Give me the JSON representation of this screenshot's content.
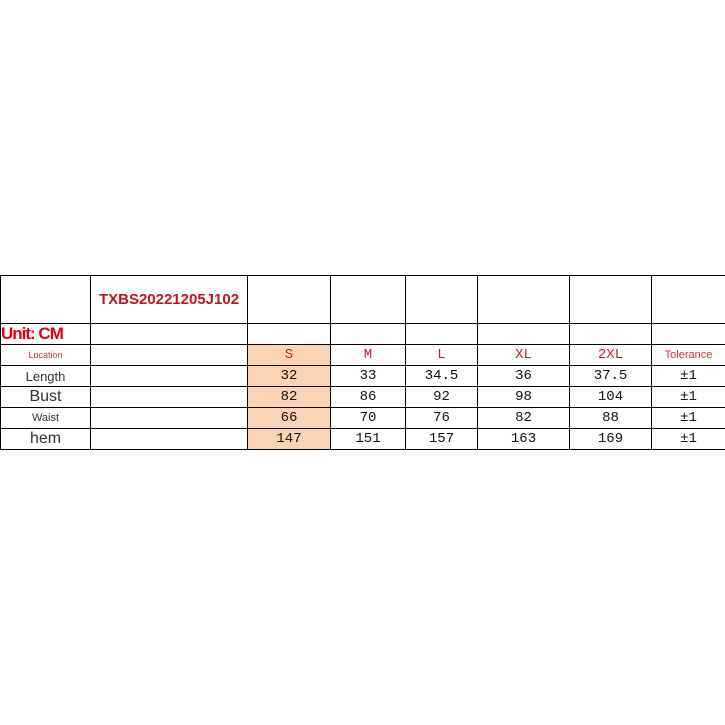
{
  "product_code": "TXBS20221205J102",
  "unit_label": "Unit: CM",
  "header": {
    "location": "Location",
    "sizes": [
      "S",
      "M",
      "L",
      "XL",
      "2XL"
    ],
    "tolerance": "Tolerance"
  },
  "rows": [
    {
      "label": "Length",
      "values": [
        "32",
        "33",
        "34.5",
        "36",
        "37.5"
      ],
      "tolerance": "±1"
    },
    {
      "label": "Bust",
      "values": [
        "82",
        "86",
        "92",
        "98",
        "104"
      ],
      "tolerance": "±1"
    },
    {
      "label": "Waist",
      "values": [
        "66",
        "70",
        "76",
        "82",
        "88"
      ],
      "tolerance": "±1"
    },
    {
      "label": "hem",
      "values": [
        "147",
        "151",
        "157",
        "163",
        "169"
      ],
      "tolerance": "±1"
    }
  ],
  "colors": {
    "highlight": "#fbd3b5",
    "accent": "#c0161e"
  }
}
